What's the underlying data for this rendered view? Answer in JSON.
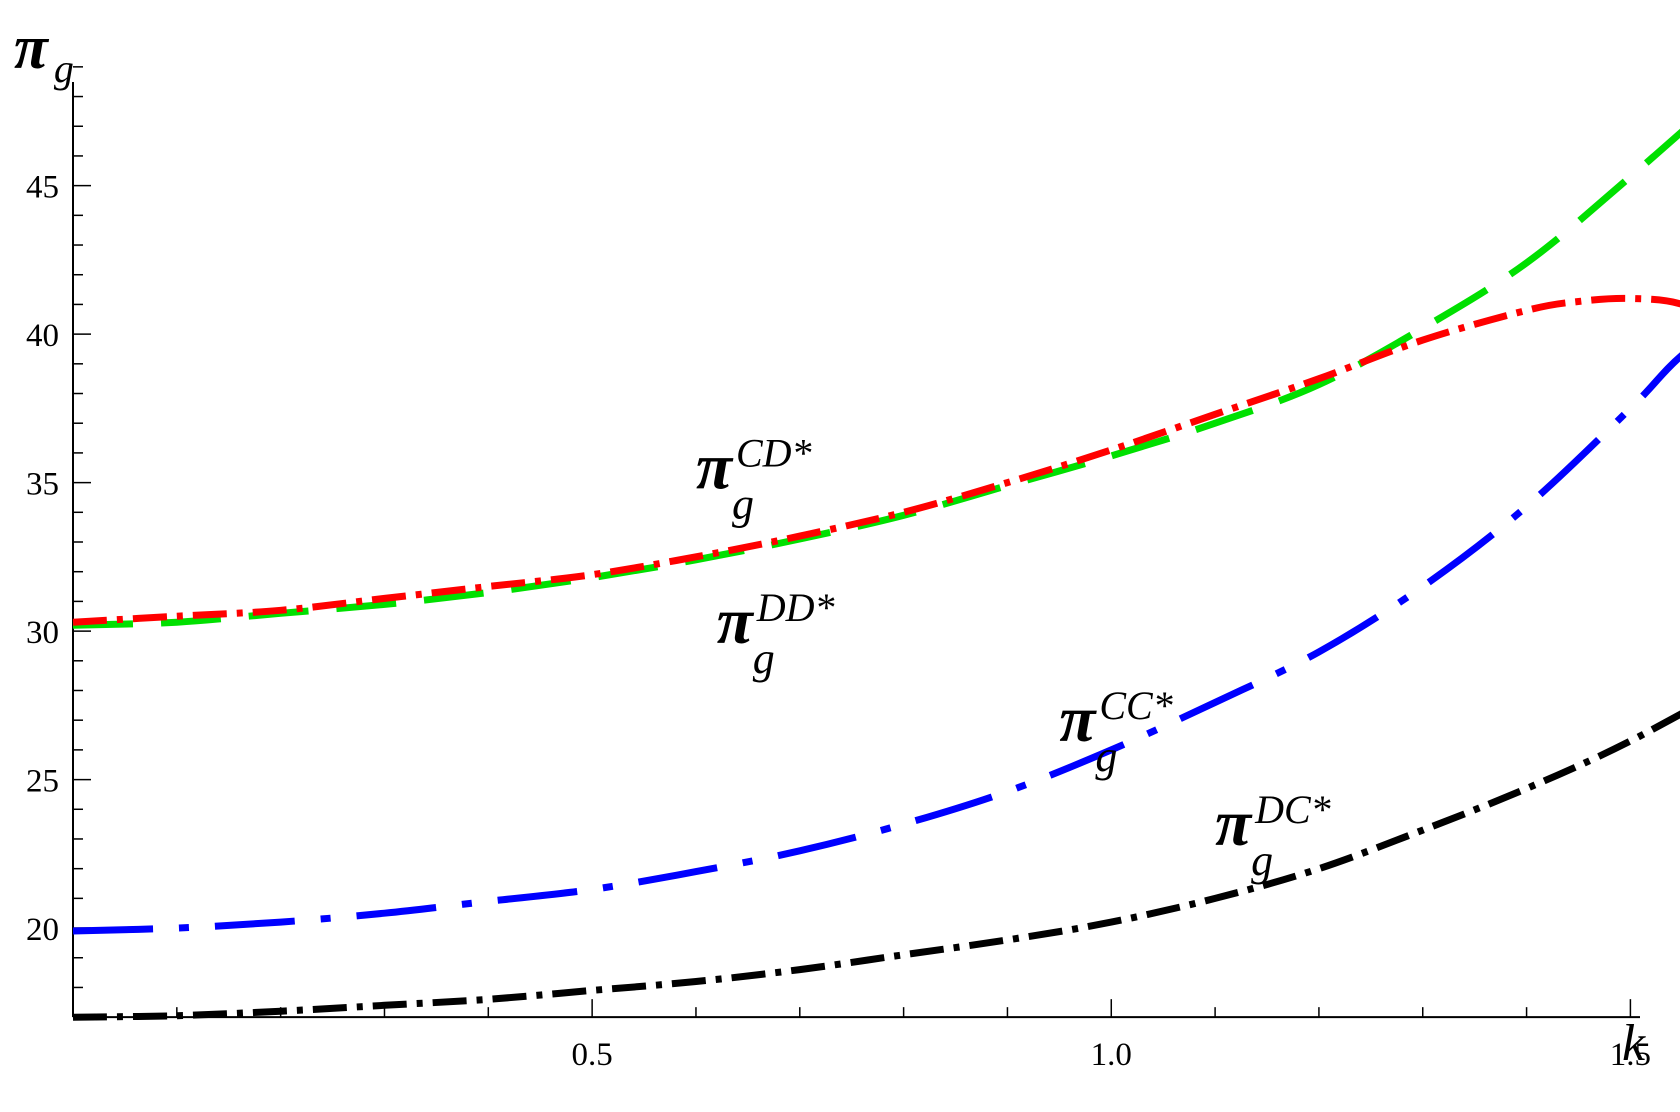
{
  "chart_data": {
    "type": "line",
    "xlabel": "k",
    "ylabel": {
      "symbol": "π",
      "subscript": "g"
    },
    "xlim": [
      0,
      1.62
    ],
    "ylim": [
      16.5,
      49.5
    ],
    "x_axis_at_y": 17.0,
    "x_ticks": [
      {
        "value": 0.5,
        "label": "0.5"
      },
      {
        "value": 1.0,
        "label": "1.0"
      },
      {
        "value": 1.5,
        "label": "1.5"
      }
    ],
    "y_ticks": [
      {
        "value": 20,
        "label": "20"
      },
      {
        "value": 25,
        "label": "25"
      },
      {
        "value": 30,
        "label": "30"
      },
      {
        "value": 35,
        "label": "35"
      },
      {
        "value": 40,
        "label": "40"
      },
      {
        "value": 45,
        "label": "45"
      }
    ],
    "grid": false,
    "legend": "none",
    "series": [
      {
        "name": "π_g^{DD*}",
        "color": "#00e000",
        "style": "long-dash",
        "x": [
          0.0,
          0.1,
          0.2,
          0.3,
          0.4,
          0.5,
          0.6,
          0.7,
          0.8,
          0.9,
          1.0,
          1.1,
          1.2,
          1.3,
          1.4,
          1.5,
          1.62
        ],
        "y": [
          30.2,
          30.3,
          30.6,
          30.9,
          31.3,
          31.8,
          32.4,
          33.1,
          33.9,
          34.9,
          35.9,
          37.0,
          38.3,
          40.2,
          42.4,
          45.3,
          49.0
        ]
      },
      {
        "name": "π_g^{CD*}",
        "color": "#ff0000",
        "style": "dash-dot",
        "x": [
          0.0,
          0.1,
          0.2,
          0.3,
          0.4,
          0.5,
          0.6,
          0.7,
          0.8,
          0.9,
          1.0,
          1.1,
          1.2,
          1.3,
          1.4,
          1.45,
          1.5,
          1.55,
          1.6,
          1.62
        ],
        "y": [
          30.3,
          30.5,
          30.7,
          31.1,
          31.5,
          31.9,
          32.5,
          33.2,
          34.0,
          35.0,
          36.1,
          37.3,
          38.5,
          39.8,
          40.8,
          41.1,
          41.2,
          41.0,
          40.1,
          39.6
        ]
      },
      {
        "name": "π_g^{CC*}",
        "color": "#0000ff",
        "style": "dash-dot-dot",
        "x": [
          0.0,
          0.1,
          0.2,
          0.3,
          0.4,
          0.5,
          0.6,
          0.7,
          0.8,
          0.9,
          1.0,
          1.1,
          1.2,
          1.3,
          1.4,
          1.5,
          1.55,
          1.62
        ],
        "y": [
          19.9,
          20.0,
          20.2,
          20.5,
          20.9,
          21.3,
          21.9,
          22.6,
          23.5,
          24.6,
          26.0,
          27.6,
          29.3,
          31.5,
          34.2,
          37.5,
          39.3,
          41.1
        ]
      },
      {
        "name": "π_g^{DC*}",
        "color": "#000000",
        "style": "dash-dot",
        "x": [
          0.0,
          0.1,
          0.2,
          0.3,
          0.4,
          0.5,
          0.6,
          0.7,
          0.8,
          0.9,
          1.0,
          1.1,
          1.2,
          1.3,
          1.4,
          1.5,
          1.62
        ],
        "y": [
          17.0,
          17.05,
          17.2,
          17.4,
          17.6,
          17.9,
          18.2,
          18.6,
          19.1,
          19.6,
          20.2,
          21.0,
          22.0,
          23.3,
          24.7,
          26.3,
          28.6
        ]
      }
    ],
    "annotations": [
      {
        "symbol": "π",
        "subscript": "g",
        "superscript": "CD*",
        "x": 0.6,
        "y": 34.8
      },
      {
        "symbol": "π",
        "subscript": "g",
        "superscript": "DD*",
        "x": 0.62,
        "y": 29.6
      },
      {
        "symbol": "π",
        "subscript": "g",
        "superscript": "CC*",
        "x": 0.95,
        "y": 26.3
      },
      {
        "symbol": "π",
        "subscript": "g",
        "superscript": "DC*",
        "x": 1.1,
        "y": 22.8
      }
    ]
  }
}
